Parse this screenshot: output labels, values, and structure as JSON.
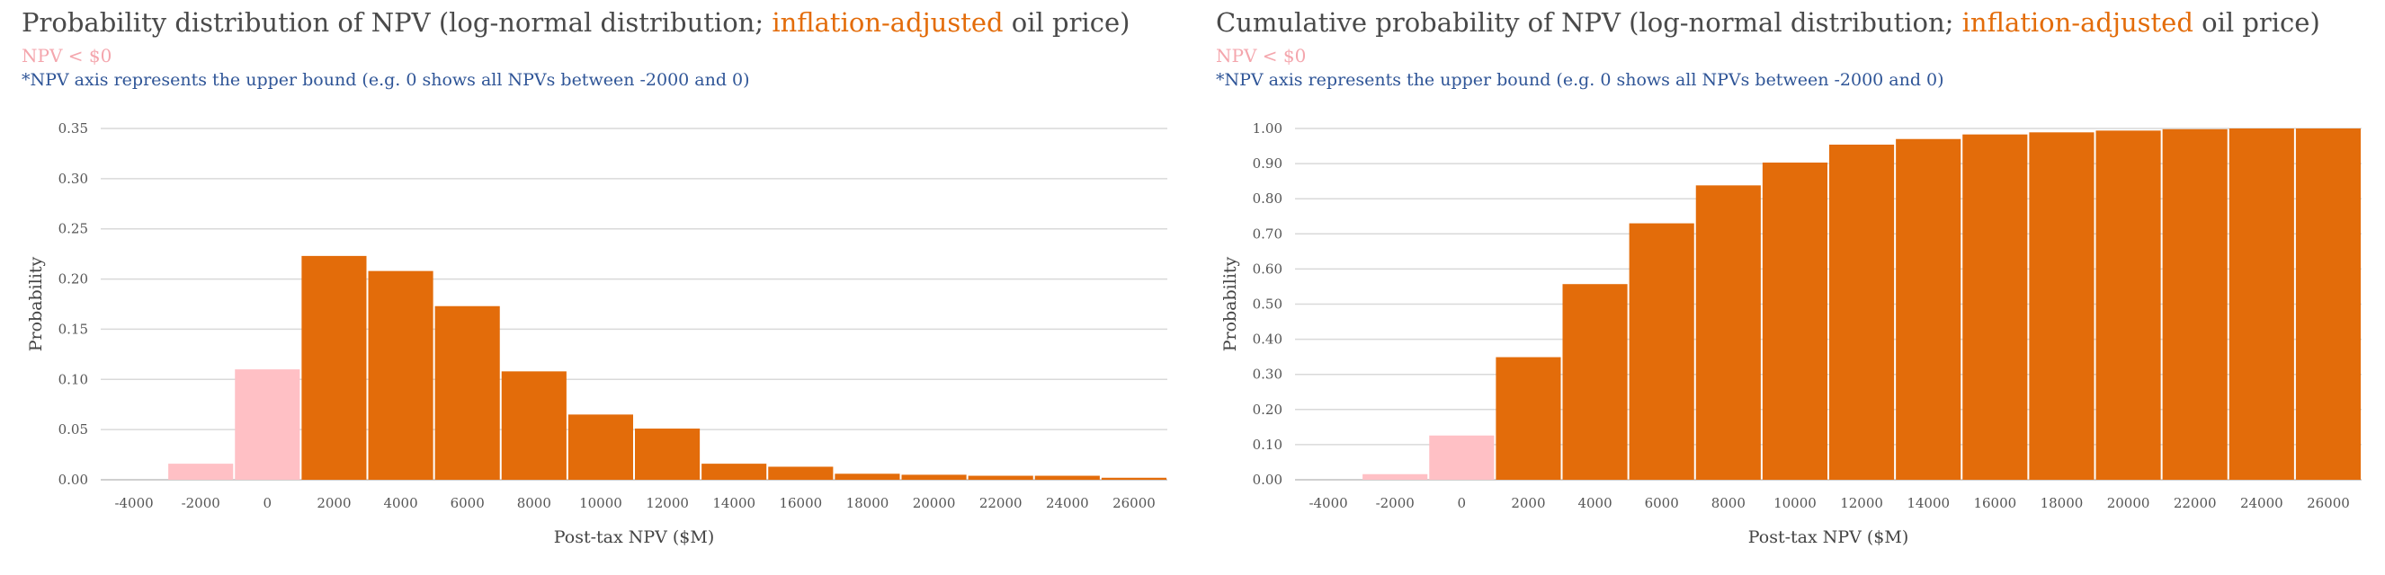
{
  "charts": [
    {
      "title_pre": "Probability distribution of NPV (log-normal distribution; ",
      "title_hl": "inflation-adjusted",
      "title_post": " oil price)",
      "legend_note": "NPV < $0",
      "footnote": "*NPV axis represents the upper bound (e.g. 0 shows all NPVs between -2000 and 0)"
    },
    {
      "title_pre": "Cumulative probability of NPV (log-normal distribution; ",
      "title_hl": "inflation-adjusted",
      "title_post": " oil price)",
      "legend_note": "NPV < $0",
      "footnote": "*NPV axis represents the upper bound (e.g. 0 shows all NPVs between -2000 and 0)"
    }
  ],
  "chart_data": [
    {
      "type": "bar",
      "categories": [
        "-4000",
        "-2000",
        "0",
        "2000",
        "4000",
        "6000",
        "8000",
        "10000",
        "12000",
        "14000",
        "16000",
        "18000",
        "20000",
        "22000",
        "24000",
        "26000"
      ],
      "values": [
        0.0,
        0.016,
        0.11,
        0.223,
        0.208,
        0.173,
        0.108,
        0.065,
        0.051,
        0.016,
        0.013,
        0.006,
        0.005,
        0.004,
        0.004,
        0.002
      ],
      "negative_categories": [
        "-4000",
        "-2000",
        "0"
      ],
      "colors": {
        "positive": "#e36c0a",
        "negative": "#ffc0c5"
      },
      "title": "Probability distribution of NPV (log-normal distribution; inflation-adjusted oil price)",
      "xlabel": "Post-tax NPV ($M)",
      "ylabel": "Probability",
      "ylim": [
        0,
        0.35
      ],
      "yticks": [
        "0.00",
        "0.05",
        "0.10",
        "0.15",
        "0.20",
        "0.25",
        "0.30",
        "0.35"
      ],
      "grid": true
    },
    {
      "type": "bar",
      "categories": [
        "-4000",
        "-2000",
        "0",
        "2000",
        "4000",
        "6000",
        "8000",
        "10000",
        "12000",
        "14000",
        "16000",
        "18000",
        "20000",
        "22000",
        "24000",
        "26000"
      ],
      "values": [
        0.0,
        0.016,
        0.126,
        0.349,
        0.557,
        0.73,
        0.838,
        0.903,
        0.954,
        0.97,
        0.983,
        0.989,
        0.994,
        0.998,
        1.0,
        1.0
      ],
      "negative_categories": [
        "-4000",
        "-2000",
        "0"
      ],
      "colors": {
        "positive": "#e36c0a",
        "negative": "#ffc0c5"
      },
      "title": "Cumulative probability of NPV (log-normal distribution; inflation-adjusted oil price)",
      "xlabel": "Post-tax NPV ($M)",
      "ylabel": "Probability",
      "ylim": [
        0,
        1.0
      ],
      "yticks": [
        "0.00",
        "0.10",
        "0.20",
        "0.30",
        "0.40",
        "0.50",
        "0.60",
        "0.70",
        "0.80",
        "0.90",
        "1.00"
      ],
      "grid": true
    }
  ]
}
